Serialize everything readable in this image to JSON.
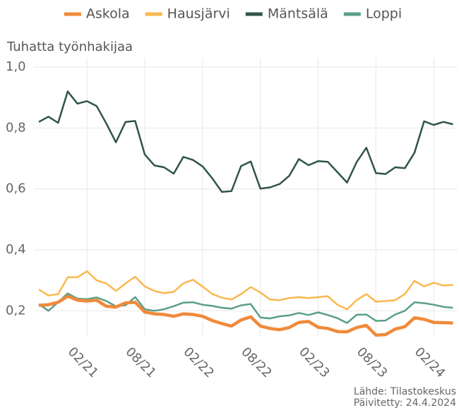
{
  "chart_data": {
    "type": "line",
    "y_label": "Tuhatta työnhakijaa",
    "source": "Lähde: Tilastokeskus",
    "updated": "Päivitetty: 24.4.2024",
    "x": [
      "09/20",
      "10/20",
      "11/20",
      "12/20",
      "01/21",
      "02/21",
      "03/21",
      "04/21",
      "05/21",
      "06/21",
      "07/21",
      "08/21",
      "09/21",
      "10/21",
      "11/21",
      "12/21",
      "01/22",
      "02/22",
      "03/22",
      "04/22",
      "05/22",
      "06/22",
      "07/22",
      "08/22",
      "09/22",
      "10/22",
      "11/22",
      "12/22",
      "01/23",
      "02/23",
      "03/23",
      "04/23",
      "05/23",
      "06/23",
      "07/23",
      "08/23",
      "09/23",
      "10/23",
      "11/23",
      "12/23",
      "01/24",
      "02/24",
      "03/24",
      "04/24"
    ],
    "xticks": [
      "02/21",
      "08/21",
      "02/22",
      "08/22",
      "02/23",
      "08/23",
      "02/24"
    ],
    "ylim": [
      0.115,
      1.03
    ],
    "yticks": [
      {
        "value": 0.2,
        "label": "0,2"
      },
      {
        "value": 0.4,
        "label": "0,4"
      },
      {
        "value": 0.6,
        "label": "0,6"
      },
      {
        "value": 0.8,
        "label": "0,8"
      },
      {
        "value": 1.0,
        "label": "1,0"
      }
    ],
    "grid": true,
    "legend": "top",
    "series": [
      {
        "name": "Askola",
        "color": "#f08a3a",
        "width": 4.5,
        "values": [
          0.218,
          0.22,
          0.228,
          0.248,
          0.235,
          0.232,
          0.235,
          0.215,
          0.212,
          0.226,
          0.228,
          0.196,
          0.19,
          0.188,
          0.182,
          0.19,
          0.188,
          0.182,
          0.168,
          0.158,
          0.15,
          0.17,
          0.18,
          0.15,
          0.142,
          0.138,
          0.145,
          0.162,
          0.165,
          0.146,
          0.142,
          0.132,
          0.131,
          0.145,
          0.152,
          0.12,
          0.122,
          0.14,
          0.148,
          0.177,
          0.172,
          0.162,
          0.161,
          0.16
        ]
      },
      {
        "name": "Hausjärvi",
        "color": "#f9b84e",
        "width": 2.5,
        "values": [
          0.27,
          0.25,
          0.255,
          0.31,
          0.31,
          0.33,
          0.3,
          0.29,
          0.265,
          0.29,
          0.312,
          0.28,
          0.265,
          0.258,
          0.262,
          0.29,
          0.302,
          0.28,
          0.255,
          0.243,
          0.237,
          0.255,
          0.278,
          0.26,
          0.237,
          0.235,
          0.242,
          0.245,
          0.242,
          0.245,
          0.248,
          0.22,
          0.205,
          0.235,
          0.255,
          0.23,
          0.232,
          0.235,
          0.255,
          0.298,
          0.28,
          0.292,
          0.283,
          0.285
        ]
      },
      {
        "name": "Mäntsälä",
        "color": "#2f5546",
        "width": 2.5,
        "values": [
          0.82,
          0.837,
          0.817,
          0.92,
          0.88,
          0.888,
          0.872,
          0.815,
          0.753,
          0.82,
          0.823,
          0.713,
          0.677,
          0.671,
          0.65,
          0.705,
          0.695,
          0.674,
          0.635,
          0.59,
          0.593,
          0.675,
          0.69,
          0.601,
          0.605,
          0.616,
          0.643,
          0.698,
          0.678,
          0.691,
          0.689,
          0.655,
          0.621,
          0.688,
          0.735,
          0.652,
          0.649,
          0.671,
          0.668,
          0.719,
          0.822,
          0.81,
          0.82,
          0.812
        ]
      },
      {
        "name": "Loppi",
        "color": "#5a9e88",
        "width": 2.5,
        "values": [
          0.222,
          0.2,
          0.228,
          0.257,
          0.24,
          0.238,
          0.244,
          0.232,
          0.215,
          0.218,
          0.245,
          0.205,
          0.2,
          0.205,
          0.215,
          0.227,
          0.228,
          0.22,
          0.216,
          0.21,
          0.207,
          0.218,
          0.222,
          0.178,
          0.175,
          0.182,
          0.185,
          0.193,
          0.186,
          0.195,
          0.186,
          0.176,
          0.16,
          0.187,
          0.188,
          0.167,
          0.168,
          0.188,
          0.2,
          0.228,
          0.225,
          0.22,
          0.213,
          0.21
        ]
      }
    ]
  }
}
